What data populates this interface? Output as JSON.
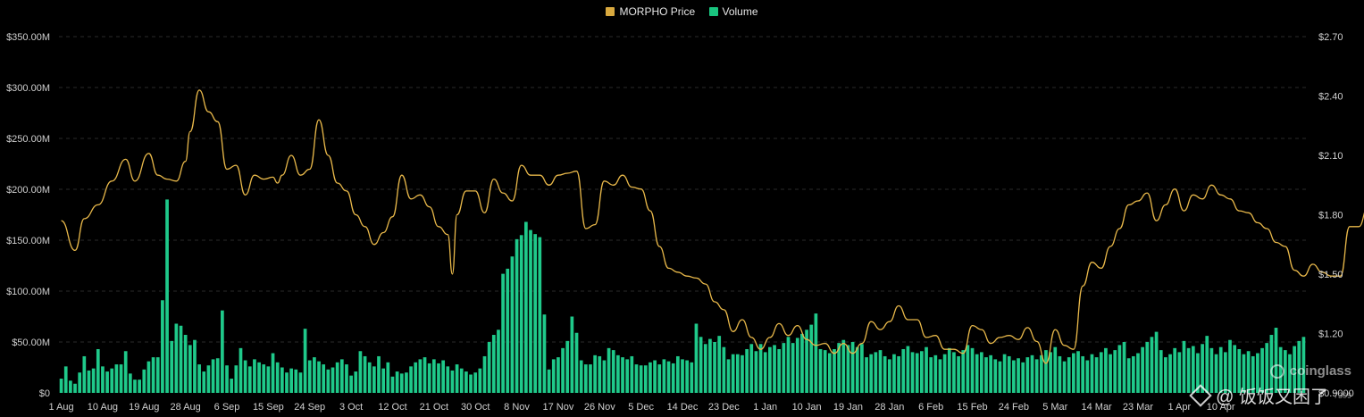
{
  "legend": {
    "price_label": "MORPHO Price",
    "volume_label": "Volume"
  },
  "colors": {
    "price": "#e8b84a",
    "volume": "#1fc98a",
    "legend_price": "#d9a93f",
    "legend_volume": "#19c47f",
    "grid": "#2a2a2a"
  },
  "watermark": {
    "brand": "coinglass",
    "handle": "@ 饭饭又困了",
    "id": "7309"
  },
  "chart_data": {
    "type": "bar+line",
    "title": "",
    "x_ticks": [
      "1 Aug",
      "10 Aug",
      "19 Aug",
      "28 Aug",
      "6 Sep",
      "15 Sep",
      "24 Sep",
      "3 Oct",
      "12 Oct",
      "21 Oct",
      "30 Oct",
      "8 Nov",
      "17 Nov",
      "26 Nov",
      "5 Dec",
      "14 Dec",
      "23 Dec",
      "1 Jan",
      "10 Jan",
      "19 Jan",
      "28 Jan",
      "6 Feb",
      "15 Feb",
      "24 Feb",
      "5 Mar",
      "14 Mar",
      "23 Mar",
      "1 Apr",
      "10 Apr"
    ],
    "y_left": {
      "label": "Volume",
      "ticks": [
        "$0",
        "$50.00M",
        "$100.00M",
        "$150.00M",
        "$200.00M",
        "$250.00M",
        "$300.00M",
        "$350.00M"
      ],
      "min": 0,
      "max": 350
    },
    "y_right": {
      "label": "MORPHO Price",
      "ticks": [
        "$0.9000",
        "$1.20",
        "$1.50",
        "$1.80",
        "$2.10",
        "$2.40",
        "$2.70"
      ],
      "min": 0.9,
      "max": 2.7
    },
    "price_series": [
      [
        0,
        1.77
      ],
      [
        3,
        1.62
      ],
      [
        5,
        1.78
      ],
      [
        8,
        1.85
      ],
      [
        11,
        1.97
      ],
      [
        14,
        2.08
      ],
      [
        16,
        1.97
      ],
      [
        19,
        2.11
      ],
      [
        21,
        2.0
      ],
      [
        23,
        1.98
      ],
      [
        25,
        1.97
      ],
      [
        27,
        2.07
      ],
      [
        28,
        2.22
      ],
      [
        30,
        2.43
      ],
      [
        32,
        2.32
      ],
      [
        34,
        2.27
      ],
      [
        36,
        2.03
      ],
      [
        38,
        2.05
      ],
      [
        40,
        1.9
      ],
      [
        42,
        2.0
      ],
      [
        44,
        1.98
      ],
      [
        46,
        1.99
      ],
      [
        47,
        1.96
      ],
      [
        48,
        2.0
      ],
      [
        50,
        2.1
      ],
      [
        52,
        2.0
      ],
      [
        54,
        2.03
      ],
      [
        56,
        2.28
      ],
      [
        58,
        2.1
      ],
      [
        60,
        1.96
      ],
      [
        62,
        1.92
      ],
      [
        64,
        1.8
      ],
      [
        66,
        1.74
      ],
      [
        68,
        1.65
      ],
      [
        70,
        1.71
      ],
      [
        72,
        1.79
      ],
      [
        74,
        2.0
      ],
      [
        76,
        1.88
      ],
      [
        78,
        1.9
      ],
      [
        80,
        1.84
      ],
      [
        82,
        1.74
      ],
      [
        84,
        1.7
      ],
      [
        85,
        1.5
      ],
      [
        86,
        1.8
      ],
      [
        88,
        1.92
      ],
      [
        90,
        1.92
      ],
      [
        92,
        1.81
      ],
      [
        94,
        1.98
      ],
      [
        96,
        1.91
      ],
      [
        98,
        1.87
      ],
      [
        100,
        2.05
      ],
      [
        102,
        2.0
      ],
      [
        104,
        2.0
      ],
      [
        106,
        1.95
      ],
      [
        108,
        2.0
      ],
      [
        110,
        2.01
      ],
      [
        112,
        2.02
      ],
      [
        114,
        1.73
      ],
      [
        116,
        1.75
      ],
      [
        118,
        1.97
      ],
      [
        120,
        1.95
      ],
      [
        122,
        2.0
      ],
      [
        124,
        1.94
      ],
      [
        126,
        1.93
      ],
      [
        128,
        1.82
      ],
      [
        130,
        1.64
      ],
      [
        132,
        1.53
      ],
      [
        134,
        1.51
      ],
      [
        136,
        1.49
      ],
      [
        138,
        1.48
      ],
      [
        140,
        1.45
      ],
      [
        142,
        1.36
      ],
      [
        144,
        1.32
      ],
      [
        146,
        1.21
      ],
      [
        148,
        1.27
      ],
      [
        150,
        1.18
      ],
      [
        152,
        1.12
      ],
      [
        154,
        1.18
      ],
      [
        156,
        1.25
      ],
      [
        158,
        1.19
      ],
      [
        160,
        1.24
      ],
      [
        162,
        1.17
      ],
      [
        164,
        1.14
      ],
      [
        166,
        1.15
      ],
      [
        168,
        1.1
      ],
      [
        170,
        1.15
      ],
      [
        172,
        1.1
      ],
      [
        174,
        1.15
      ],
      [
        176,
        1.26
      ],
      [
        178,
        1.22
      ],
      [
        180,
        1.26
      ],
      [
        182,
        1.34
      ],
      [
        184,
        1.27
      ],
      [
        186,
        1.27
      ],
      [
        188,
        1.18
      ],
      [
        190,
        1.19
      ],
      [
        192,
        1.12
      ],
      [
        194,
        1.12
      ],
      [
        196,
        1.1
      ],
      [
        198,
        1.24
      ],
      [
        200,
        1.22
      ],
      [
        202,
        1.15
      ],
      [
        204,
        1.18
      ],
      [
        206,
        1.19
      ],
      [
        208,
        1.17
      ],
      [
        210,
        1.23
      ],
      [
        212,
        1.16
      ],
      [
        214,
        1.05
      ],
      [
        216,
        1.22
      ],
      [
        218,
        1.14
      ],
      [
        220,
        1.12
      ],
      [
        222,
        1.44
      ],
      [
        224,
        1.56
      ],
      [
        226,
        1.53
      ],
      [
        228,
        1.64
      ],
      [
        230,
        1.73
      ],
      [
        232,
        1.85
      ],
      [
        234,
        1.87
      ],
      [
        236,
        1.91
      ],
      [
        238,
        1.77
      ],
      [
        240,
        1.85
      ],
      [
        242,
        1.93
      ],
      [
        244,
        1.82
      ],
      [
        246,
        1.9
      ],
      [
        248,
        1.88
      ],
      [
        250,
        1.95
      ],
      [
        252,
        1.9
      ],
      [
        254,
        1.88
      ],
      [
        256,
        1.82
      ],
      [
        258,
        1.81
      ],
      [
        260,
        1.76
      ],
      [
        262,
        1.73
      ],
      [
        264,
        1.66
      ],
      [
        266,
        1.64
      ],
      [
        268,
        1.52
      ],
      [
        270,
        1.49
      ],
      [
        272,
        1.55
      ],
      [
        274,
        1.51
      ],
      [
        276,
        1.49
      ],
      [
        278,
        1.49
      ],
      [
        280,
        1.74
      ],
      [
        282,
        1.74
      ],
      [
        284,
        1.84
      ]
    ],
    "volume_series": [
      14,
      26,
      12,
      9,
      20,
      36,
      22,
      24,
      43,
      26,
      21,
      24,
      28,
      28,
      41,
      19,
      13,
      13,
      23,
      31,
      35,
      35,
      91,
      190,
      51,
      68,
      66,
      57,
      47,
      52,
      28,
      21,
      27,
      33,
      34,
      81,
      27,
      14,
      27,
      44,
      32,
      26,
      33,
      30,
      28,
      26,
      39,
      30,
      25,
      20,
      24,
      23,
      20,
      63,
      32,
      35,
      31,
      28,
      23,
      25,
      30,
      33,
      28,
      17,
      21,
      41,
      36,
      30,
      26,
      36,
      24,
      30,
      16,
      21,
      19,
      20,
      26,
      30,
      33,
      35,
      29,
      33,
      29,
      32,
      26,
      22,
      28,
      24,
      21,
      18,
      20,
      24,
      36,
      50,
      57,
      62,
      117,
      122,
      134,
      151,
      155,
      168,
      160,
      156,
      153,
      77,
      23,
      33,
      35,
      44,
      51,
      75,
      59,
      32,
      28,
      28,
      37,
      36,
      32,
      44,
      42,
      37,
      35,
      33,
      36,
      28,
      27,
      27,
      30,
      32,
      28,
      33,
      31,
      29,
      36,
      33,
      32,
      30,
      68,
      55,
      48,
      53,
      50,
      56,
      45,
      33,
      38,
      38,
      37,
      43,
      48,
      41,
      48,
      40,
      45,
      47,
      43,
      49,
      55,
      49,
      54,
      58,
      62,
      67,
      78,
      43,
      42,
      39,
      43,
      49,
      52,
      47,
      50,
      45,
      48,
      35,
      38,
      40,
      42,
      36,
      33,
      38,
      36,
      43,
      46,
      40,
      39,
      41,
      45,
      35,
      37,
      33,
      38,
      44,
      40,
      36,
      42,
      47,
      44,
      38,
      40,
      35,
      37,
      33,
      31,
      38,
      36,
      32,
      34,
      30,
      35,
      37,
      33,
      37,
      42,
      40,
      45,
      36,
      31,
      35,
      39,
      41,
      36,
      32,
      38,
      35,
      40,
      44,
      38,
      42,
      47,
      50,
      34,
      36,
      39,
      45,
      50,
      55,
      60,
      42,
      35,
      38,
      44,
      40,
      51,
      44,
      46,
      39,
      48,
      56,
      44,
      38,
      45,
      40,
      52,
      47,
      43,
      38,
      41,
      36,
      39,
      44,
      49,
      57,
      64,
      45,
      42,
      38,
      46,
      51,
      55
    ]
  }
}
